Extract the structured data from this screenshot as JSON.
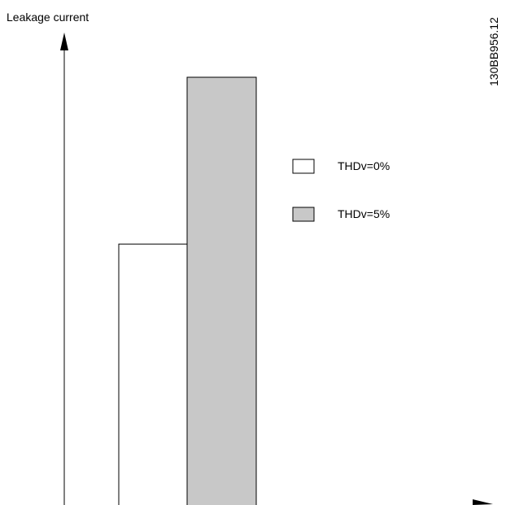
{
  "figure_id": "130BB956.12",
  "chart_data": {
    "type": "bar",
    "ylabel": "Leakage current",
    "xlabel": "",
    "ylim": [
      0,
      100
    ],
    "series": [
      {
        "name": "THDv=0%",
        "values": [
          61
        ],
        "color": "#ffffff"
      },
      {
        "name": "THDv=5%",
        "values": [
          100
        ],
        "color": "#c8c8c8"
      }
    ],
    "legend": {
      "position": "right"
    },
    "grid": false
  }
}
